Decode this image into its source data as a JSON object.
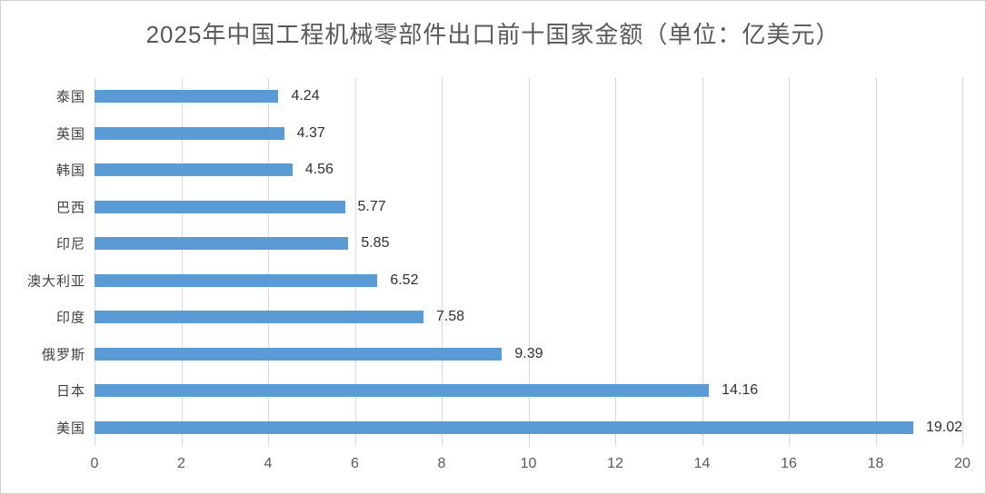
{
  "colors": {
    "bar": "#5B9BD5",
    "gridline": "#D9D9D9",
    "border": "#D0D0D0",
    "background": "#FFFFFF",
    "title_text": "#595959",
    "category_text": "#404040",
    "value_text": "#303030",
    "tick_text": "#595959"
  },
  "chart_data": {
    "type": "bar",
    "orientation": "horizontal",
    "title": "2025年中国工程机械零部件出口前十国家金额（单位：亿美元）",
    "categories": [
      "泰国",
      "英国",
      "韩国",
      "巴西",
      "印尼",
      "澳大利亚",
      "印度",
      "俄罗斯",
      "日本",
      "美国"
    ],
    "values": [
      4.24,
      4.37,
      4.56,
      5.77,
      5.85,
      6.52,
      7.58,
      9.39,
      14.16,
      19.02
    ],
    "value_labels": [
      "4.24",
      "4.37",
      "4.56",
      "5.77",
      "5.85",
      "6.52",
      "7.58",
      "9.39",
      "14.16",
      "19.02"
    ],
    "xlabel": "",
    "ylabel": "",
    "xlim": [
      0,
      20
    ],
    "x_ticks": [
      0,
      2,
      4,
      6,
      8,
      10,
      12,
      14,
      16,
      18,
      20
    ],
    "grid": "vertical",
    "legend": "none",
    "data_labels": "outside-end"
  }
}
